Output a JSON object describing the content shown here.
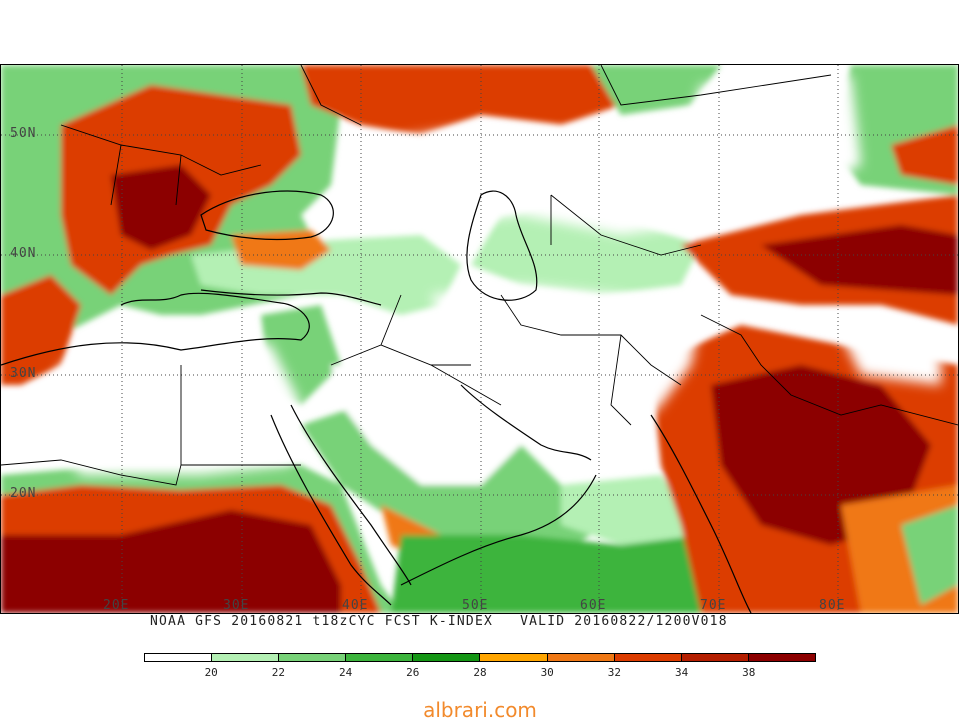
{
  "caption": {
    "left": "NOAA GFS 20160821 t18zCYC FCST K-INDEX",
    "right": "VALID 20160822/1200V018"
  },
  "latitudes": [
    "50N",
    "40N",
    "30N",
    "20N"
  ],
  "longitudes": [
    "20E",
    "30E",
    "40E",
    "50E",
    "60E",
    "70E",
    "80E"
  ],
  "legend": {
    "colors": [
      "#ffffff",
      "#b4f0b4",
      "#78d278",
      "#3cb43c",
      "#149614",
      "#ffa500",
      "#f07814",
      "#dc3c00",
      "#b41e00",
      "#8c0000"
    ],
    "labels": [
      "20",
      "22",
      "24",
      "26",
      "28",
      "30",
      "32",
      "34",
      "38"
    ]
  },
  "watermark": "albrari.com"
}
